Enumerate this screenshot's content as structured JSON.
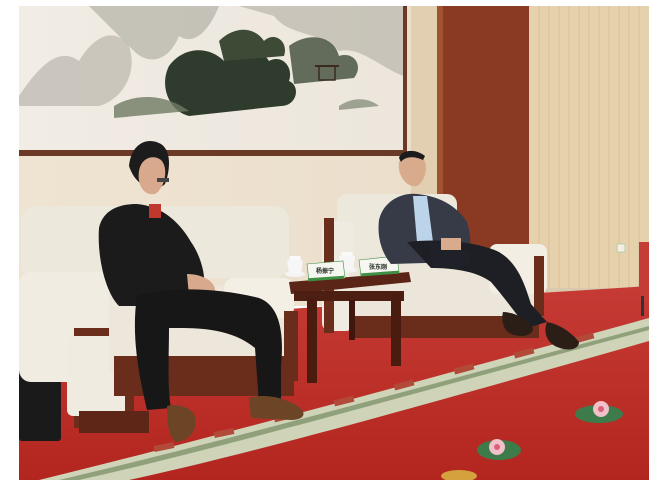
{
  "photo": {
    "nameplates": [
      {
        "text": "杨振宁"
      },
      {
        "text": "张东刚"
      }
    ]
  }
}
